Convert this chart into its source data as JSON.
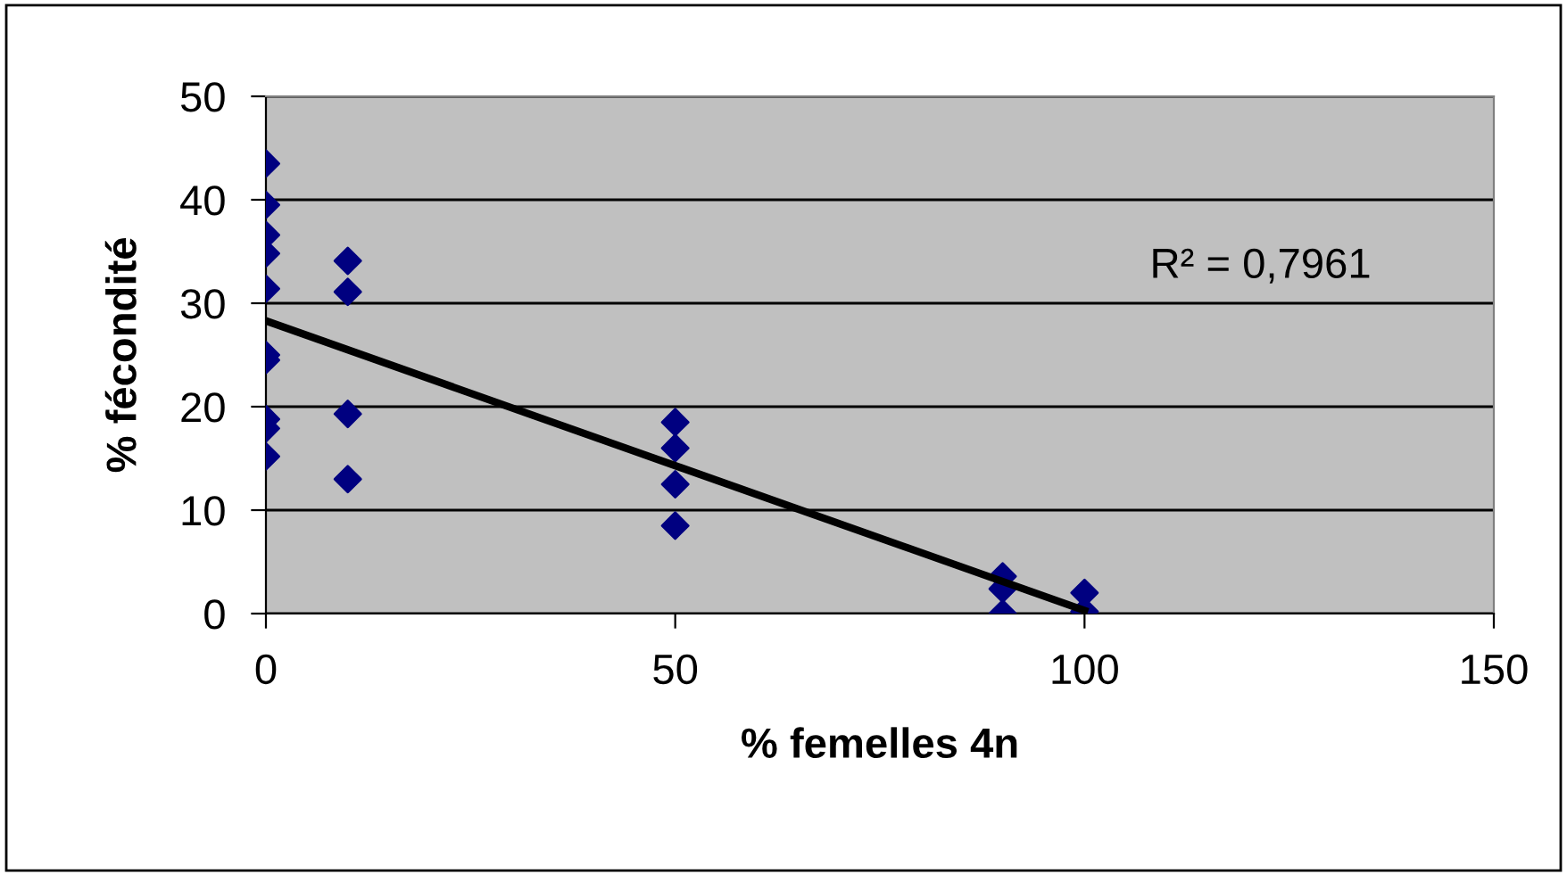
{
  "chart_data": {
    "type": "scatter",
    "xlabel": "% femelles 4n",
    "ylabel": "% fécondité",
    "annotations": [
      "R² = 0,7961"
    ],
    "xlim": [
      0,
      150
    ],
    "ylim": [
      0,
      50
    ],
    "xticks": [
      0,
      50,
      100,
      150
    ],
    "yticks": [
      0,
      10,
      20,
      30,
      40,
      50
    ],
    "grid": "y",
    "marker": "diamond",
    "legend": false,
    "series": [
      {
        "color": "#000080",
        "x": [
          0,
          0,
          0,
          0,
          0,
          0,
          0,
          0,
          0,
          0,
          10,
          10,
          10,
          10,
          50,
          50,
          50,
          50,
          90,
          90,
          90,
          100,
          100
        ],
        "values": [
          43.5,
          39.5,
          36.6,
          34.8,
          31.4,
          25.0,
          24.5,
          18.8,
          17.9,
          15.2,
          34.1,
          31.1,
          19.3,
          13.0,
          18.5,
          16.0,
          12.5,
          8.5,
          3.6,
          2.4,
          0,
          2.0,
          0.2
        ]
      },
      {
        "type": "line",
        "color": "#000000",
        "x": [
          0,
          100
        ],
        "values": [
          28.3,
          0.3
        ],
        "marker": "none",
        "line_style": "solid"
      }
    ]
  }
}
